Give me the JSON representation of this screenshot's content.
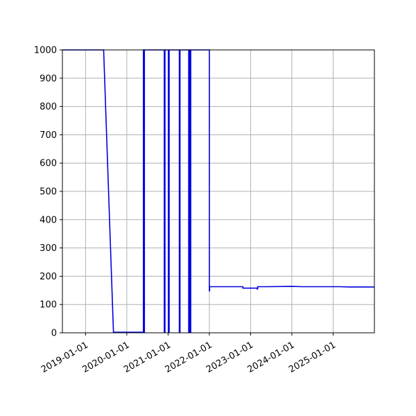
{
  "chart_data": {
    "type": "line",
    "title": "",
    "xlabel": "",
    "ylabel": "",
    "grid": true,
    "xlim": [
      "2018-06-10",
      "2025-12-31"
    ],
    "ylim": [
      0,
      1000
    ],
    "x_ticks": [
      "2019-01-01",
      "2020-01-01",
      "2021-01-01",
      "2022-01-01",
      "2023-01-01",
      "2024-01-01",
      "2025-01-01"
    ],
    "y_ticks": [
      0,
      100,
      200,
      300,
      400,
      500,
      600,
      700,
      800,
      900,
      1000
    ],
    "line_color": "#0000dd",
    "series": [
      {
        "x": [
          "2018-06-10",
          "2019-06-10",
          "2019-09-05",
          "2019-09-05",
          "2019-09-15",
          "2019-09-15",
          "2020-05-27",
          "2020-05-27",
          "2020-06-02",
          "2020-06-02",
          "2020-06-05",
          "2020-06-05",
          "2020-11-28",
          "2020-11-28",
          "2020-12-04",
          "2020-12-04",
          "2021-01-03",
          "2021-01-03",
          "2021-01-10",
          "2021-01-10",
          "2021-04-10",
          "2021-04-10",
          "2021-04-16",
          "2021-04-16",
          "2021-07-02",
          "2021-07-02",
          "2021-07-08",
          "2021-07-08",
          "2021-07-14",
          "2021-07-14",
          "2021-07-20",
          "2021-07-20",
          "2022-01-01",
          "2022-01-01",
          "2022-01-03",
          "2022-01-03",
          "2022-01-06",
          "2022-01-06",
          "2022-10-25",
          "2022-10-25",
          "2023-02-28",
          "2023-02-28",
          "2023-03-05",
          "2023-03-05",
          "2023-06-01",
          "2024-01-01",
          "2024-04-01",
          "2025-03-01",
          "2025-06-01",
          "2025-12-31"
        ],
        "y": [
          1000,
          1000,
          2,
          2,
          2,
          2,
          2,
          1000,
          1000,
          2,
          2,
          1000,
          1000,
          2,
          2,
          1000,
          1000,
          2,
          2,
          1000,
          1000,
          2,
          2,
          1000,
          1000,
          2,
          2,
          1000,
          1000,
          2,
          2,
          1000,
          1000,
          148,
          148,
          163,
          163,
          163,
          163,
          158,
          158,
          155,
          155,
          163,
          163,
          164,
          163,
          163,
          162,
          162
        ]
      }
    ]
  }
}
